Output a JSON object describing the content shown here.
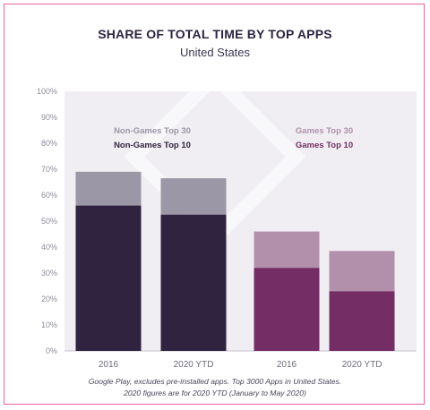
{
  "chart_data": {
    "type": "bar",
    "title": "SHARE OF TOTAL TIME BY TOP APPS",
    "subtitle": "United States",
    "categories": [
      "2016",
      "2020 YTD",
      "2016",
      "2020 YTD"
    ],
    "groups": [
      {
        "series": [
          {
            "name": "Non-Games Top 10",
            "values": [
              56,
              52.5
            ],
            "color": "#30233f"
          },
          {
            "name": "Non-Games Top 30",
            "values": [
              69,
              66.5
            ],
            "color": "#9b97a6"
          }
        ]
      },
      {
        "series": [
          {
            "name": "Games Top 10",
            "values": [
              32,
              23
            ],
            "color": "#742e65"
          },
          {
            "name": "Games Top 30",
            "values": [
              46,
              38.5
            ],
            "color": "#b290ab"
          }
        ]
      }
    ],
    "ylim": [
      0,
      100
    ],
    "yticks": [
      "0%",
      "10%",
      "20%",
      "30%",
      "40%",
      "50%",
      "60%",
      "70%",
      "80%",
      "90%",
      "100%"
    ],
    "grid": false,
    "legend_position": "top, above each group",
    "legend_colors": {
      "Non-Games Top 30": "#9b97a6",
      "Non-Games Top 10": "#30233f",
      "Games Top 30": "#b290ab",
      "Games Top 10": "#742e65"
    }
  },
  "caption": {
    "line1": "Google Play, excludes pre-installed apps. Top 3000 Apps in United States.",
    "line2": "2020 figures are for 2020 YTD (January to May 2020)"
  },
  "background_color": "#f0eef2",
  "frame_color": "#e8649a"
}
